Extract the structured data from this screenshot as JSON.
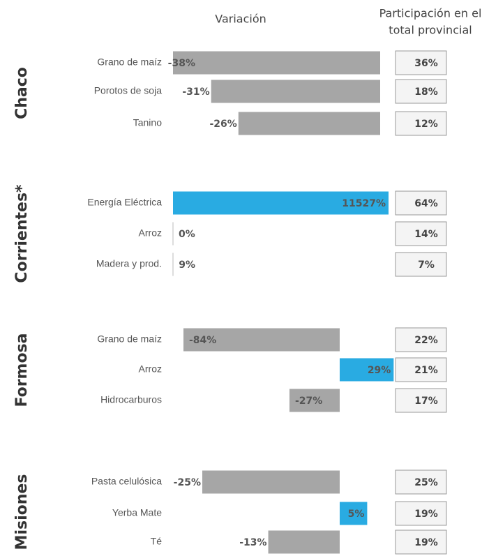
{
  "chart_data": {
    "type": "bar",
    "header_variation": "Variación",
    "header_share": [
      "Participación en el",
      "total provincial"
    ],
    "groups": [
      {
        "name": "Chaco",
        "items": [
          {
            "label": "Grano de maíz",
            "value": -38,
            "value_label": "-38%",
            "share": "36%",
            "color": "#a6a6a6"
          },
          {
            "label": "Porotos de soja",
            "value": -31,
            "value_label": "-31%",
            "share": "18%",
            "color": "#a6a6a6"
          },
          {
            "label": "Tanino",
            "value": -26,
            "value_label": "-26%",
            "share": "12%",
            "color": "#a6a6a6"
          }
        ]
      },
      {
        "name": "Corrientes*",
        "items": [
          {
            "label": "Energía Eléctrica",
            "value": 11527,
            "value_label": "11527%",
            "share": "64%",
            "color": "#29abe2"
          },
          {
            "label": "Arroz",
            "value": 0,
            "value_label": "0%",
            "share": "14%",
            "color": "#a6a6a6"
          },
          {
            "label": "Madera y prod.",
            "value": 9,
            "value_label": "9%",
            "share": "7%",
            "color": "#a6a6a6"
          }
        ]
      },
      {
        "name": "Formosa",
        "items": [
          {
            "label": "Grano de maíz",
            "value": -84,
            "value_label": "-84%",
            "share": "22%",
            "color": "#a6a6a6"
          },
          {
            "label": "Arroz",
            "value": 29,
            "value_label": "29%",
            "share": "21%",
            "color": "#29abe2"
          },
          {
            "label": "Hidrocarburos",
            "value": -27,
            "value_label": "-27%",
            "share": "17%",
            "color": "#a6a6a6"
          }
        ]
      },
      {
        "name": "Misiones",
        "items": [
          {
            "label": "Pasta celulósica",
            "value": -25,
            "value_label": "-25%",
            "share": "25%",
            "color": "#a6a6a6"
          },
          {
            "label": "Yerba Mate",
            "value": 5,
            "value_label": "5%",
            "share": "19%",
            "color": "#29abe2"
          },
          {
            "label": "Té",
            "value": -13,
            "value_label": "-13%",
            "share": "19%",
            "color": "#a6a6a6"
          }
        ]
      }
    ]
  }
}
